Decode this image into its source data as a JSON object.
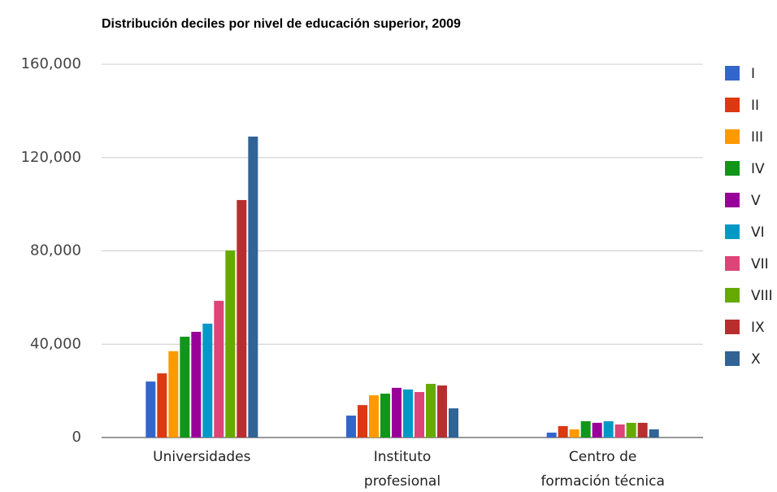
{
  "chart_data": {
    "type": "bar",
    "title": "Distribución deciles por nivel de educación superior, 2009",
    "categories": [
      "Universidades",
      "Instituto profesional",
      "Centro de formación técnica"
    ],
    "series": [
      {
        "name": "I",
        "color": "#3366cc",
        "values": [
          24000,
          9400,
          2100
        ]
      },
      {
        "name": "II",
        "color": "#dc3912",
        "values": [
          27500,
          13900,
          4900
        ]
      },
      {
        "name": "III",
        "color": "#ff9900",
        "values": [
          37000,
          18100,
          3500
        ]
      },
      {
        "name": "IV",
        "color": "#109618",
        "values": [
          43200,
          18800,
          7000
        ]
      },
      {
        "name": "V",
        "color": "#990099",
        "values": [
          45300,
          21300,
          6300
        ]
      },
      {
        "name": "VI",
        "color": "#0099c6",
        "values": [
          48800,
          20600,
          7000
        ]
      },
      {
        "name": "VII",
        "color": "#dd4477",
        "values": [
          58600,
          19500,
          5600
        ]
      },
      {
        "name": "VIII",
        "color": "#66aa00",
        "values": [
          80200,
          23000,
          6300
        ]
      },
      {
        "name": "IX",
        "color": "#b82e2e",
        "values": [
          101800,
          22300,
          6300
        ]
      },
      {
        "name": "X",
        "color": "#316395",
        "values": [
          129000,
          12500,
          3500
        ]
      }
    ],
    "ylim": [
      0,
      160000
    ],
    "yticks": [
      0,
      {
        "value": 40000,
        "label": "40,000"
      },
      {
        "value": 80000,
        "label": "80,000"
      },
      {
        "value": 120000,
        "label": "120,000"
      },
      {
        "value": 160000,
        "label": "160,000"
      }
    ],
    "grid": true,
    "legend": "right"
  }
}
